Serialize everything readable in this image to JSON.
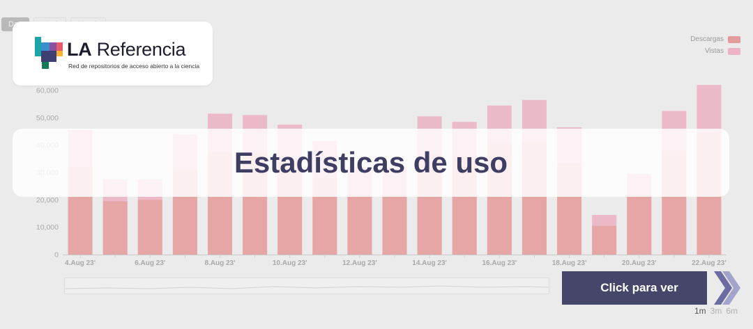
{
  "range_tabs": [
    "Day",
    "Week",
    "Month"
  ],
  "legend": [
    {
      "label": "Descargas",
      "color": "#e49b9b"
    },
    {
      "label": "Vistas",
      "color": "#ecb2c6"
    }
  ],
  "logo": {
    "title_bold": "LA",
    "title_rest": " Referencia",
    "subtitle": "Red de repositorios de acceso abierto a la ciencia"
  },
  "banner": {
    "title": "Estadísticas de uso"
  },
  "cta": {
    "label": "Click para ver"
  },
  "zoom_options": [
    "1m",
    "3m",
    "6m"
  ],
  "chart_data": {
    "type": "bar",
    "categories": [
      "4.Aug 23'",
      "5.Aug 23'",
      "6.Aug 23'",
      "7.Aug 23'",
      "8.Aug 23'",
      "9.Aug 23'",
      "10.Aug 23'",
      "11.Aug 23'",
      "12.Aug 23'",
      "13.Aug 23'",
      "14.Aug 23'",
      "15.Aug 23'",
      "16.Aug 23'",
      "17.Aug 23'",
      "18.Aug 23'",
      "19.Aug 23'",
      "20.Aug 23'",
      "21.Aug 23'",
      "22.Aug 23'"
    ],
    "tick_labels": [
      "4.Aug 23'",
      "6.Aug 23'",
      "8.Aug 23'",
      "10.Aug 23'",
      "12.Aug 23'",
      "14.Aug 23'",
      "16.Aug 23'",
      "18.Aug 23'",
      "20.Aug 23'",
      "22.Aug 23'"
    ],
    "series": [
      {
        "name": "Descargas",
        "values": [
          32000,
          19500,
          20000,
          31000,
          37500,
          37000,
          34000,
          28000,
          22000,
          22000,
          36500,
          36000,
          40500,
          41000,
          33500,
          10500,
          22000,
          38000,
          44500
        ]
      },
      {
        "name": "Vistas",
        "values": [
          45500,
          27500,
          27500,
          44000,
          51500,
          51000,
          47500,
          41500,
          32000,
          32000,
          50500,
          48500,
          54500,
          56500,
          46500,
          14500,
          29500,
          52500,
          62000
        ]
      }
    ],
    "y_ticks": [
      0,
      10000,
      20000,
      30000,
      40000,
      50000,
      60000
    ],
    "ylim": [
      0,
      60000
    ],
    "legend_position": "top-right",
    "stacked": false
  }
}
